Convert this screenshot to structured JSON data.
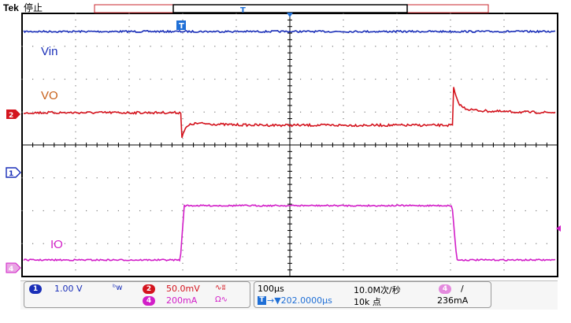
{
  "status": {
    "brand": "Tek",
    "run_state": "停止",
    "trigger_marker": "T",
    "trigger_position_marker": "T"
  },
  "waveforms": {
    "vin_label": "Vin",
    "vo_label": "VO",
    "io_label": "IO"
  },
  "channel_markers": {
    "ch1": "1",
    "ch2": "2",
    "ch4": "4"
  },
  "readouts": {
    "ch1_num": "1",
    "ch1_scale": "1.00 V",
    "ch1_bw_icon": "bandwidth-icon",
    "ch2_num": "2",
    "ch2_scale": "50.0mV",
    "ch2_icon": "ac-coupling-icon",
    "ch4_num": "4",
    "ch4_scale": "200mA",
    "ch4_icon": "current-probe-icon",
    "timebase": "100µs",
    "sample_rate": "10.0M次/秒",
    "trigger_position": "→▼202.0000µs",
    "record_length": "10k 点",
    "trig_channel": "4",
    "trig_slope": "/",
    "trig_level": "236mA"
  },
  "colors": {
    "ch1": "#1a2fb8",
    "ch2": "#d4141e",
    "ch4": "#d21ec8",
    "grid": "#7a7a7a",
    "frame": "#000000",
    "trigger_marker": "#1f6fd6",
    "record_bar": "#c9242b"
  }
}
